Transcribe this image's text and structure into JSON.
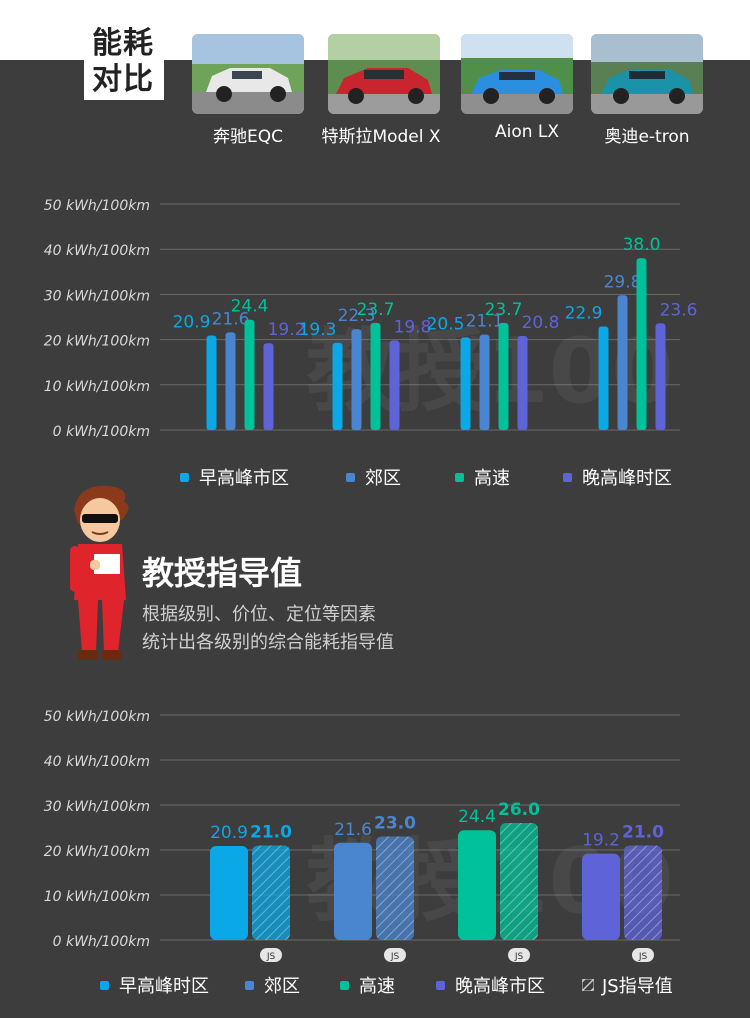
{
  "header": {
    "title_line1": "能耗",
    "title_line2": "对比",
    "cars": [
      {
        "label": "奔驰EQC",
        "color": "#e8e8e8"
      },
      {
        "label": "特斯拉Model X",
        "color": "#c9252f"
      },
      {
        "label": "Aion LX",
        "color": "#2a8fe0"
      },
      {
        "label": "奥迪e-tron",
        "color": "#1a93a8"
      }
    ]
  },
  "colors": {
    "morning_peak": "#0aa8e6",
    "suburb": "#4a86d0",
    "highway": "#00c29a",
    "evening_peak": "#5f63d8",
    "axis_text": "#d8d8d8",
    "grid": "#6a6a6a",
    "label_text": "#bfbfbf",
    "background": "#3d3d3d"
  },
  "watermark": "教授100",
  "guide": {
    "title": "教授指导值",
    "desc_line1": "根据级别、价位、定位等因素",
    "desc_line2": "统计出各级别的综合能耗指导值"
  },
  "chart_data": [
    {
      "type": "bar",
      "ylim": [
        0,
        50
      ],
      "yticks": [
        "0 kWh/100km",
        "10 kWh/100km",
        "20 kWh/100km",
        "30 kWh/100km",
        "40 kWh/100km",
        "50 kWh/100km"
      ],
      "series_names": [
        "早高峰市区",
        "郊区",
        "高速",
        "晚高峰时区"
      ],
      "groups": [
        {
          "values": [
            20.9,
            21.6,
            24.4,
            19.2
          ]
        },
        {
          "values": [
            19.3,
            22.3,
            23.7,
            19.8
          ]
        },
        {
          "values": [
            20.5,
            21.1,
            23.7,
            20.8
          ]
        },
        {
          "values": [
            22.9,
            29.8,
            38.0,
            23.6
          ]
        }
      ],
      "value_labels": [
        [
          "20.9",
          "21.6",
          "24.4",
          "19.2"
        ],
        [
          "19.3",
          "22.3",
          "23.7",
          "19.8"
        ],
        [
          "20.5",
          "21.1",
          "23.7",
          "20.8"
        ],
        [
          "22.9",
          "29.8",
          "38.0",
          "23.6"
        ]
      ]
    },
    {
      "type": "bar",
      "ylim": [
        0,
        50
      ],
      "yticks": [
        "0 kWh/100km",
        "10 kWh/100km",
        "20 kWh/100km",
        "30 kWh/100km",
        "40 kWh/100km",
        "50 kWh/100km"
      ],
      "legend": [
        "早高峰时区",
        "郊区",
        "高速",
        "晚高峰市区",
        "JS指导值"
      ],
      "pairs": [
        {
          "actual": 20.9,
          "guide": 21.0,
          "actual_label": "20.9",
          "guide_label": "21.0"
        },
        {
          "actual": 21.6,
          "guide": 23.0,
          "actual_label": "21.6",
          "guide_label": "23.0"
        },
        {
          "actual": 24.4,
          "guide": 26.0,
          "actual_label": "24.4",
          "guide_label": "26.0"
        },
        {
          "actual": 19.2,
          "guide": 21.0,
          "actual_label": "19.2",
          "guide_label": "21.0"
        }
      ],
      "badge": "JS"
    }
  ]
}
